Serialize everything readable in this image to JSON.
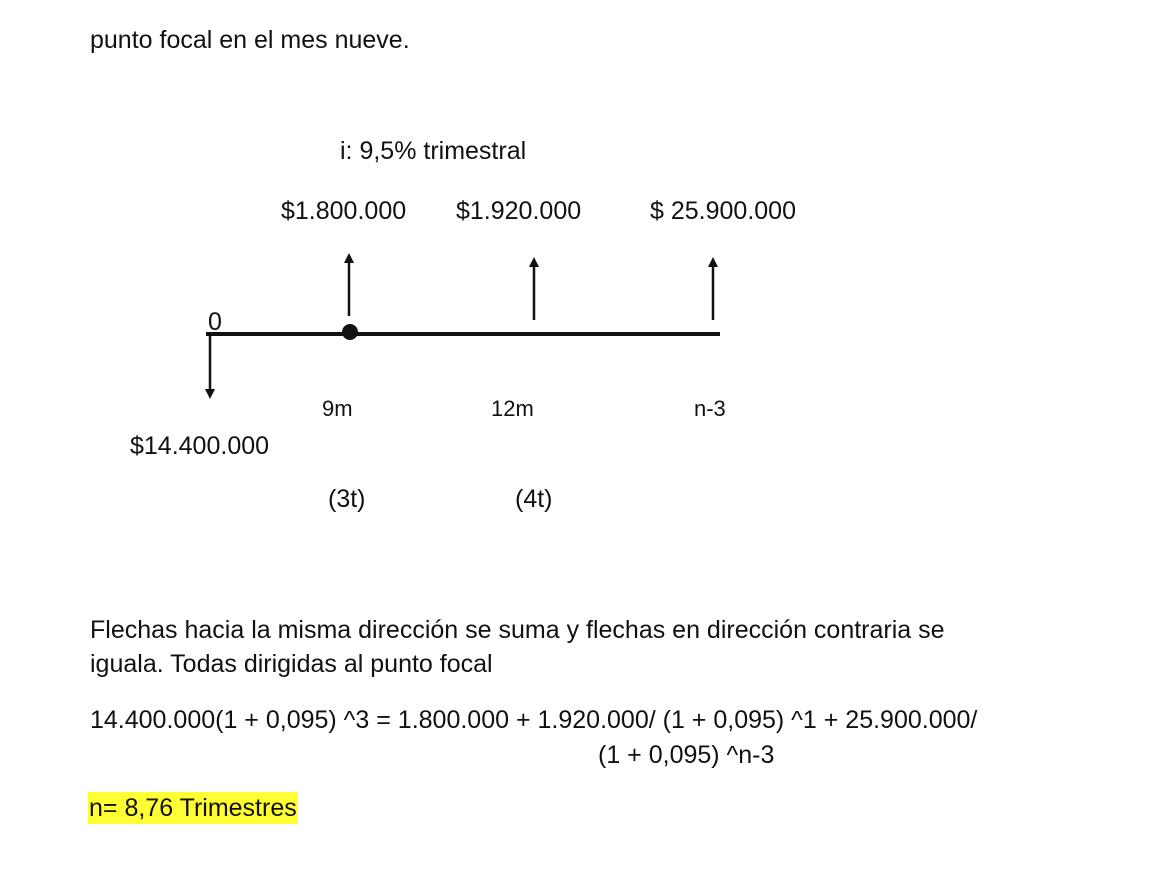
{
  "intro_text": "punto focal en el mes nueve.",
  "diagram": {
    "interest_rate": "i: 9,5% trimestral",
    "payments": [
      {
        "amount": "$1.800.000",
        "period_label": "9m",
        "quarter_label": "(3t)"
      },
      {
        "amount": "$1.920.000",
        "period_label": "12m",
        "quarter_label": "(4t)"
      },
      {
        "amount": "$ 25.900.000",
        "period_label": "n-3",
        "quarter_label": ""
      }
    ],
    "origin_label": "0",
    "initial_amount": "$14.400.000"
  },
  "explanation": {
    "line1": "Flechas hacia la misma dirección se suma y flechas en dirección contraria se",
    "line2": "iguala. Todas dirigidas al punto focal"
  },
  "equation": {
    "line1": "14.400.000(1 + 0,095) ^3 = 1.800.000 + 1.920.000/ (1 + 0,095) ^1 + 25.900.000/",
    "line2": "(1 + 0,095) ^n-3"
  },
  "result": "n= 8,76 Trimestres",
  "colors": {
    "highlight": "#ffff33",
    "ink": "#111111"
  }
}
